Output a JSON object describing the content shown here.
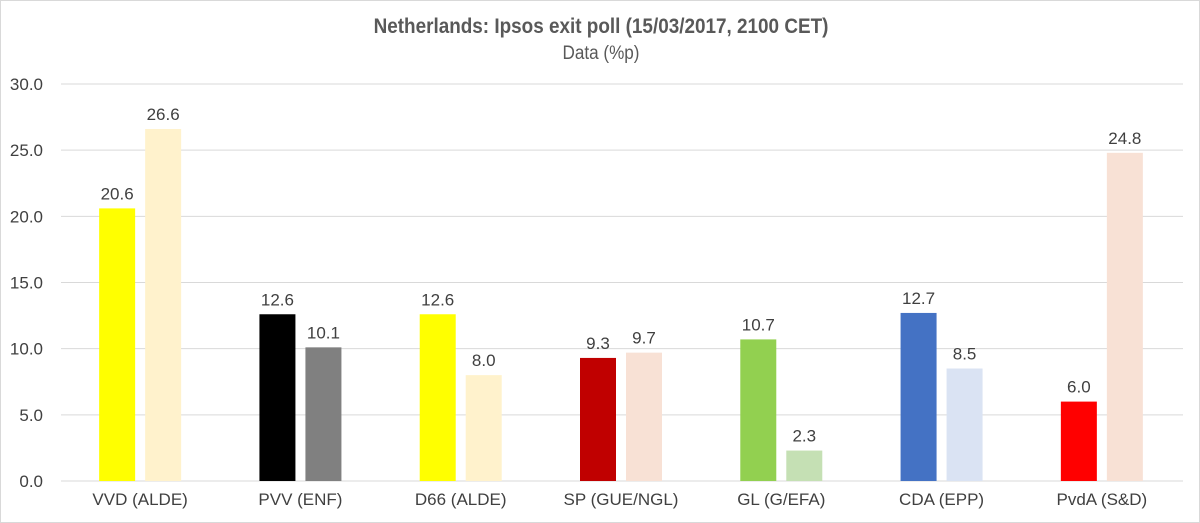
{
  "chart_data": {
    "type": "bar",
    "title": "Netherlands: Ipsos exit poll (15/03/2017, 2100 CET)",
    "subtitle": "Data (%p)",
    "xlabel": "",
    "ylabel": "",
    "ylim": [
      0,
      30
    ],
    "yticks": [
      "0.0",
      "5.0",
      "10.0",
      "15.0",
      "20.0",
      "25.0",
      "30.0"
    ],
    "grid": true,
    "legend": "none",
    "categories": [
      "VVD (ALDE)",
      "PVV (ENF)",
      "D66 (ALDE)",
      "SP (GUE/NGL)",
      "GL (G/EFA)",
      "CDA (EPP)",
      "PvdA (S&D)"
    ],
    "series": [
      {
        "name": "Exit poll",
        "values": [
          20.6,
          12.6,
          12.6,
          9.3,
          10.7,
          12.7,
          6.0
        ],
        "colors": [
          "#FFFF00",
          "#000000",
          "#FFFF00",
          "#C00000",
          "#92D050",
          "#4472C4",
          "#FF0000"
        ]
      },
      {
        "name": "Previous",
        "values": [
          26.6,
          10.1,
          8.0,
          9.7,
          2.3,
          8.5,
          24.8
        ],
        "colors": [
          "#FFF2CC",
          "#808080",
          "#FFF2CC",
          "#F8E1D5",
          "#C5E0B4",
          "#DAE3F3",
          "#F8E1D5"
        ]
      }
    ]
  }
}
